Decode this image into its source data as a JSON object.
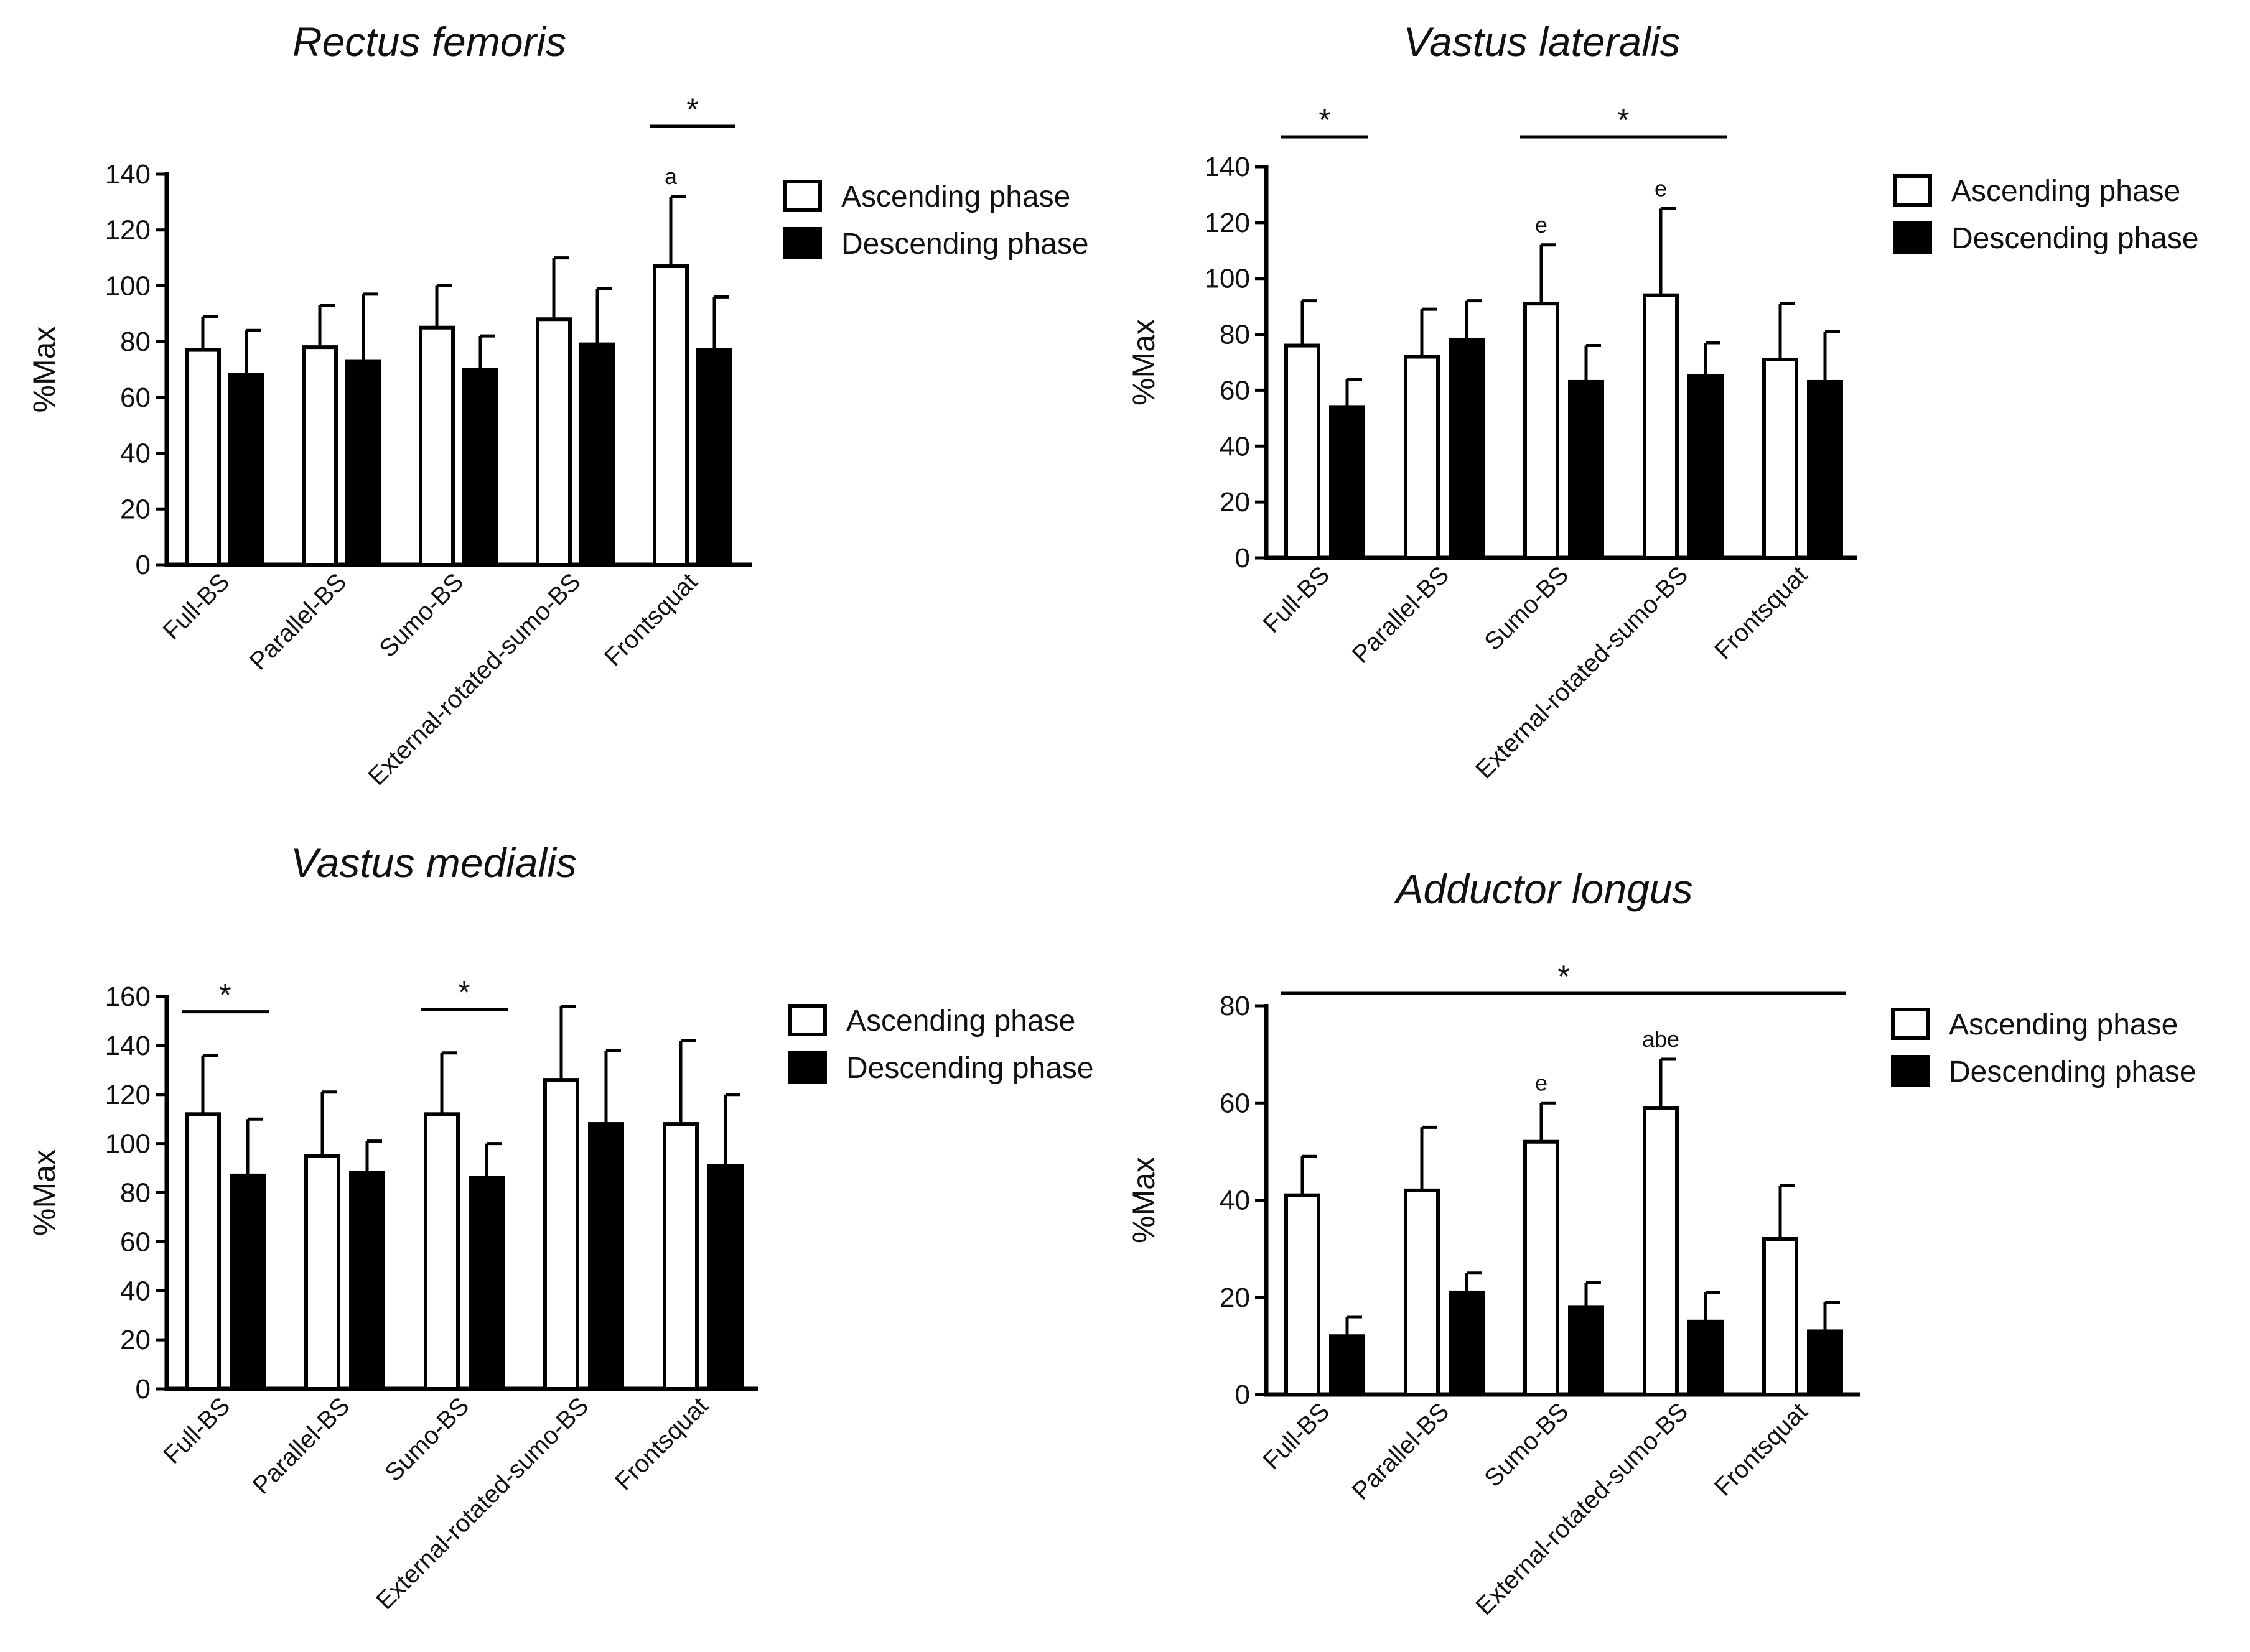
{
  "figure": {
    "colors": {
      "ascending_fill": "#ffffff",
      "descending_fill": "#000000",
      "stroke": "#000000"
    }
  },
  "chart_data": [
    {
      "type": "bar",
      "title": "Rectus femoris",
      "ylabel": "%Max",
      "xlabel": "",
      "ylim": [
        0,
        140
      ],
      "yticks": [
        "0",
        "20",
        "40",
        "60",
        "80",
        "100",
        "120",
        "140"
      ],
      "categories": [
        "Full-BS",
        "Parallel-BS",
        "Sumo-BS",
        "External-rotated-sumo-BS",
        "Frontsquat"
      ],
      "series": [
        {
          "name": "Ascending phase",
          "values": [
            77,
            78,
            85,
            88,
            107
          ],
          "errors": [
            12,
            15,
            15,
            22,
            25
          ]
        },
        {
          "name": "Descending phase",
          "values": [
            68,
            73,
            70,
            79,
            77
          ],
          "errors": [
            16,
            24,
            12,
            20,
            19
          ]
        }
      ],
      "annotations": {
        "letters": [
          {
            "category": 4,
            "series": 0,
            "text": "a"
          }
        ],
        "significance": [
          {
            "from": 4,
            "to": 4,
            "text": "*"
          }
        ]
      }
    },
    {
      "type": "bar",
      "title": "Vastus lateralis",
      "ylabel": "%Max",
      "xlabel": "",
      "ylim": [
        0,
        140
      ],
      "yticks": [
        "0",
        "20",
        "40",
        "60",
        "80",
        "100",
        "120",
        "140"
      ],
      "categories": [
        "Full-BS",
        "Parallel-BS",
        "Sumo-BS",
        "External-rotated-sumo-BS",
        "Frontsquat"
      ],
      "series": [
        {
          "name": "Ascending phase",
          "values": [
            76,
            72,
            91,
            94,
            71
          ],
          "errors": [
            16,
            17,
            21,
            31,
            20
          ]
        },
        {
          "name": "Descending phase",
          "values": [
            54,
            78,
            63,
            65,
            63
          ],
          "errors": [
            10,
            14,
            13,
            12,
            18
          ]
        }
      ],
      "annotations": {
        "letters": [
          {
            "category": 2,
            "series": 0,
            "text": "e"
          },
          {
            "category": 3,
            "series": 0,
            "text": "e"
          }
        ],
        "significance": [
          {
            "from": 0,
            "to": 0,
            "text": "*"
          },
          {
            "from": 2,
            "to": 3,
            "text": "*"
          }
        ]
      }
    },
    {
      "type": "bar",
      "title": "Vastus medialis",
      "ylabel": "%Max",
      "xlabel": "",
      "ylim": [
        0,
        160
      ],
      "yticks": [
        "0",
        "20",
        "40",
        "60",
        "80",
        "100",
        "120",
        "140",
        "160"
      ],
      "categories": [
        "Full-BS",
        "Parallel-BS",
        "Sumo-BS",
        "External-rotated-sumo-BS",
        "Frontsquat"
      ],
      "series": [
        {
          "name": "Ascending phase",
          "values": [
            112,
            95,
            112,
            126,
            108
          ],
          "errors": [
            24,
            26,
            25,
            30,
            34
          ]
        },
        {
          "name": "Descending phase",
          "values": [
            87,
            88,
            86,
            108,
            91
          ],
          "errors": [
            23,
            13,
            14,
            30,
            29
          ]
        }
      ],
      "annotations": {
        "letters": [],
        "significance": [
          {
            "from": 0,
            "to": 0,
            "text": "*"
          },
          {
            "from": 2,
            "to": 2,
            "text": "*"
          }
        ]
      }
    },
    {
      "type": "bar",
      "title": "Adductor longus",
      "ylabel": "%Max",
      "xlabel": "",
      "ylim": [
        0,
        80
      ],
      "yticks": [
        "0",
        "20",
        "40",
        "60",
        "80"
      ],
      "categories": [
        "Full-BS",
        "Parallel-BS",
        "Sumo-BS",
        "External-rotated-sumo-BS",
        "Frontsquat"
      ],
      "series": [
        {
          "name": "Ascending phase",
          "values": [
            41,
            42,
            52,
            59,
            32
          ],
          "errors": [
            8,
            13,
            8,
            10,
            11
          ]
        },
        {
          "name": "Descending phase",
          "values": [
            12,
            21,
            18,
            15,
            13
          ],
          "errors": [
            4,
            4,
            5,
            6,
            6
          ]
        }
      ],
      "annotations": {
        "letters": [
          {
            "category": 2,
            "series": 0,
            "text": "e"
          },
          {
            "category": 3,
            "series": 0,
            "text": "abe"
          }
        ],
        "significance": [
          {
            "from": 0,
            "to": 4,
            "text": "*"
          }
        ]
      }
    }
  ]
}
